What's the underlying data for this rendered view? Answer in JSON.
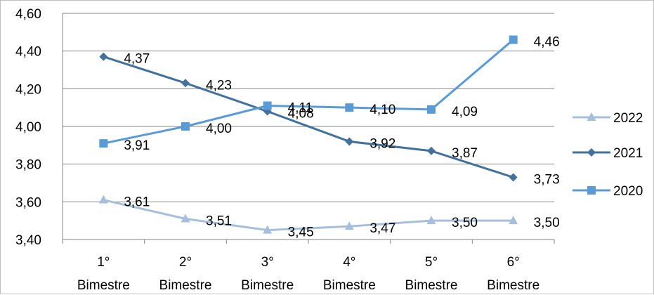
{
  "chart_data": {
    "type": "line",
    "title": "",
    "xlabel": "",
    "ylabel": "",
    "categories": [
      [
        "1°",
        "Bimestre"
      ],
      [
        "2°",
        "Bimestre"
      ],
      [
        "3°",
        "Bimestre"
      ],
      [
        "4°",
        "Bimestre"
      ],
      [
        "5°",
        "Bimestre"
      ],
      [
        "6°",
        "Bimestre"
      ]
    ],
    "ylim": [
      3.4,
      4.6
    ],
    "yticks": [
      "3,40",
      "3,60",
      "3,80",
      "4,00",
      "4,20",
      "4,40",
      "4,60"
    ],
    "ytick_values": [
      3.4,
      3.6,
      3.8,
      4.0,
      4.2,
      4.4,
      4.6
    ],
    "grid": "horizontal",
    "legend_position": "right",
    "series": [
      {
        "name": "2022",
        "marker": "triangle",
        "color": "#a6bfdc",
        "values": [
          3.61,
          3.51,
          3.45,
          3.47,
          3.5,
          3.5
        ],
        "labels": [
          "3,61",
          "3,51",
          "3,45",
          "3,47",
          "3,50",
          "3,50"
        ]
      },
      {
        "name": "2021",
        "marker": "diamond",
        "color": "#41719c",
        "values": [
          4.37,
          4.23,
          4.08,
          3.92,
          3.87,
          3.73
        ],
        "labels": [
          "4,37",
          "4,23",
          "4,08",
          "3,92",
          "3,87",
          "3,73"
        ]
      },
      {
        "name": "2020",
        "marker": "square",
        "color": "#5b9bd5",
        "values": [
          3.91,
          4.0,
          4.11,
          4.1,
          4.09,
          4.46
        ],
        "labels": [
          "3,91",
          "4,00",
          "4,11",
          "4,10",
          "4,09",
          "4,46"
        ]
      }
    ]
  }
}
